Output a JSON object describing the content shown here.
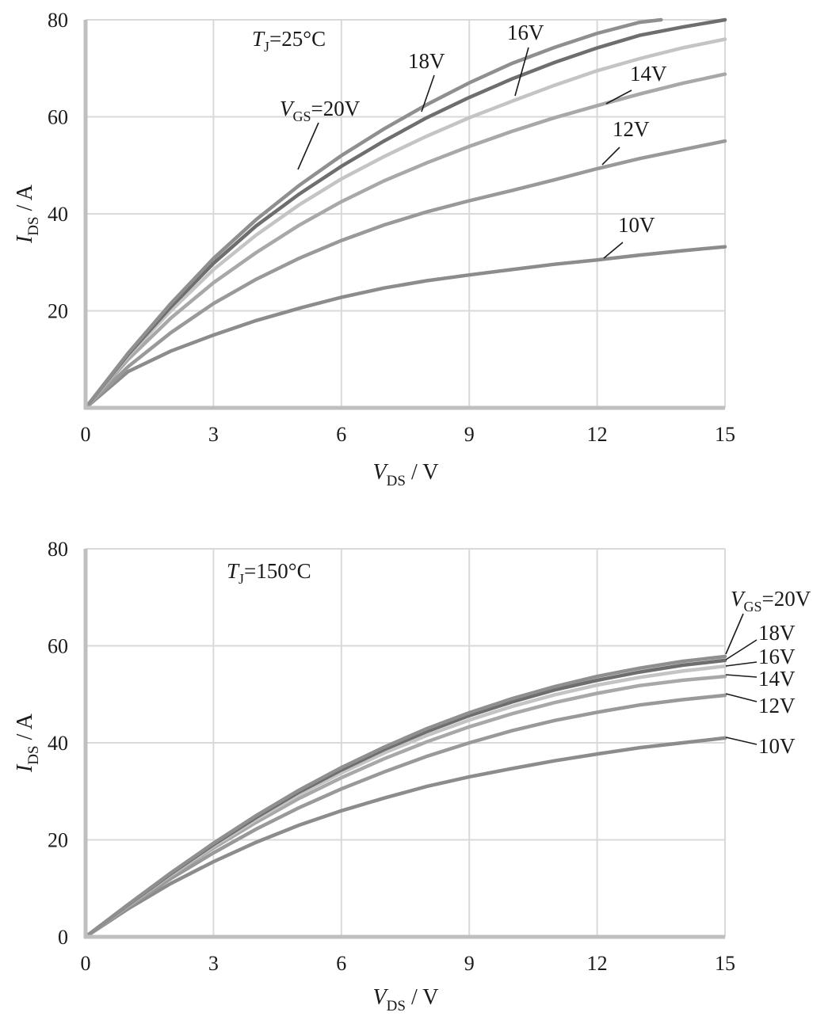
{
  "chart_data": [
    {
      "type": "line",
      "annotation": {
        "symbol": "T",
        "sub": "J",
        "text": "=25°C"
      },
      "xlabel": {
        "symbol": "V",
        "sub": "DS",
        "unit": " / V"
      },
      "ylabel": {
        "symbol": "I",
        "sub": "DS",
        "unit": " / A"
      },
      "xlim": [
        0,
        15
      ],
      "ylim": [
        0,
        80
      ],
      "xticks": [
        "0",
        "3",
        "6",
        "9",
        "12",
        "15"
      ],
      "yticks": [
        "20",
        "40",
        "60",
        "80"
      ],
      "grid": true,
      "series": [
        {
          "label": "10V",
          "color": "#8c8c8c",
          "points": [
            [
              0,
              0
            ],
            [
              1,
              7.5
            ],
            [
              2,
              11.7
            ],
            [
              3,
              15
            ],
            [
              4,
              18
            ],
            [
              5,
              20.5
            ],
            [
              6,
              22.8
            ],
            [
              7,
              24.7
            ],
            [
              8,
              26.2
            ],
            [
              9,
              27.4
            ],
            [
              10,
              28.5
            ],
            [
              11,
              29.6
            ],
            [
              12,
              30.5
            ],
            [
              13,
              31.5
            ],
            [
              14,
              32.4
            ],
            [
              15,
              33.2
            ]
          ]
        },
        {
          "label": "12V",
          "color": "#999999",
          "points": [
            [
              0,
              0
            ],
            [
              1,
              8.5
            ],
            [
              2,
              15.5
            ],
            [
              3,
              21.5
            ],
            [
              4,
              26.5
            ],
            [
              5,
              30.8
            ],
            [
              6,
              34.5
            ],
            [
              7,
              37.7
            ],
            [
              8,
              40.4
            ],
            [
              9,
              42.7
            ],
            [
              10,
              44.8
            ],
            [
              11,
              47
            ],
            [
              12,
              49.3
            ],
            [
              13,
              51.4
            ],
            [
              14,
              53.2
            ],
            [
              15,
              55
            ]
          ]
        },
        {
          "label": "14V",
          "color": "#a8a8a8",
          "points": [
            [
              0,
              0
            ],
            [
              1,
              10
            ],
            [
              2,
              18.5
            ],
            [
              3,
              25.8
            ],
            [
              4,
              32
            ],
            [
              5,
              37.6
            ],
            [
              6,
              42.5
            ],
            [
              7,
              46.8
            ],
            [
              8,
              50.5
            ],
            [
              9,
              53.9
            ],
            [
              10,
              57
            ],
            [
              11,
              59.8
            ],
            [
              12,
              62.3
            ],
            [
              13,
              64.7
            ],
            [
              14,
              66.9
            ],
            [
              15,
              68.8
            ]
          ]
        },
        {
          "label": "16V",
          "color": "#c4c4c4",
          "points": [
            [
              0,
              0
            ],
            [
              1,
              10.7
            ],
            [
              2,
              20
            ],
            [
              3,
              28.5
            ],
            [
              4,
              35.6
            ],
            [
              5,
              41.8
            ],
            [
              6,
              47.2
            ],
            [
              7,
              51.8
            ],
            [
              8,
              56
            ],
            [
              9,
              59.8
            ],
            [
              10,
              63.2
            ],
            [
              11,
              66.5
            ],
            [
              12,
              69.5
            ],
            [
              13,
              72
            ],
            [
              14,
              74.2
            ],
            [
              15,
              76
            ]
          ]
        },
        {
          "label": "18V",
          "color": "#6e6e6e",
          "points": [
            [
              0,
              0
            ],
            [
              1,
              11
            ],
            [
              2,
              20.8
            ],
            [
              3,
              29.8
            ],
            [
              4,
              37.5
            ],
            [
              5,
              44
            ],
            [
              6,
              49.8
            ],
            [
              7,
              55
            ],
            [
              8,
              59.8
            ],
            [
              9,
              64
            ],
            [
              10,
              67.8
            ],
            [
              11,
              71.2
            ],
            [
              12,
              74.2
            ],
            [
              13,
              76.8
            ],
            [
              14,
              78.5
            ],
            [
              15,
              80
            ]
          ]
        },
        {
          "label": "V_GS=20V",
          "color": "#8f8f8f",
          "points": [
            [
              0,
              0
            ],
            [
              1,
              11.3
            ],
            [
              2,
              21.5
            ],
            [
              3,
              30.8
            ],
            [
              4,
              38.8
            ],
            [
              5,
              45.8
            ],
            [
              6,
              52
            ],
            [
              7,
              57.5
            ],
            [
              8,
              62.5
            ],
            [
              9,
              67
            ],
            [
              10,
              71
            ],
            [
              11,
              74.3
            ],
            [
              12,
              77.2
            ],
            [
              13,
              79.5
            ],
            [
              13.5,
              80
            ]
          ]
        }
      ],
      "legend_labels": [
        {
          "key": "vgs20",
          "prefix": "V",
          "sub": "GS",
          "text": "=20V"
        },
        {
          "key": "v18",
          "text": "18V"
        },
        {
          "key": "v16",
          "text": "16V"
        },
        {
          "key": "v14",
          "text": "14V"
        },
        {
          "key": "v12",
          "text": "12V"
        },
        {
          "key": "v10",
          "text": "10V"
        }
      ]
    },
    {
      "type": "line",
      "annotation": {
        "symbol": "T",
        "sub": "J",
        "text": "=150°C"
      },
      "xlabel": {
        "symbol": "V",
        "sub": "DS",
        "unit": " / V"
      },
      "ylabel": {
        "symbol": "I",
        "sub": "DS",
        "unit": " / A"
      },
      "xlim": [
        0,
        15
      ],
      "ylim": [
        0,
        80
      ],
      "xticks": [
        "0",
        "3",
        "6",
        "9",
        "12",
        "15"
      ],
      "yticks": [
        "0",
        "20",
        "40",
        "60",
        "80"
      ],
      "grid": true,
      "series": [
        {
          "label": "10V",
          "color": "#8c8c8c",
          "points": [
            [
              0,
              0
            ],
            [
              1,
              5.8
            ],
            [
              2,
              11
            ],
            [
              3,
              15.5
            ],
            [
              4,
              19.5
            ],
            [
              5,
              23
            ],
            [
              6,
              26
            ],
            [
              7,
              28.6
            ],
            [
              8,
              31
            ],
            [
              9,
              33
            ],
            [
              10,
              34.7
            ],
            [
              11,
              36.3
            ],
            [
              12,
              37.7
            ],
            [
              13,
              39
            ],
            [
              14,
              40
            ],
            [
              15,
              41
            ]
          ]
        },
        {
          "label": "12V",
          "color": "#999999",
          "points": [
            [
              0,
              0
            ],
            [
              1,
              6.2
            ],
            [
              2,
              12
            ],
            [
              3,
              17.3
            ],
            [
              4,
              22.2
            ],
            [
              5,
              26.6
            ],
            [
              6,
              30.5
            ],
            [
              7,
              34
            ],
            [
              8,
              37.2
            ],
            [
              9,
              40
            ],
            [
              10,
              42.5
            ],
            [
              11,
              44.6
            ],
            [
              12,
              46.3
            ],
            [
              13,
              47.8
            ],
            [
              14,
              48.9
            ],
            [
              15,
              49.8
            ]
          ]
        },
        {
          "label": "14V",
          "color": "#a8a8a8",
          "points": [
            [
              0,
              0
            ],
            [
              1,
              6.4
            ],
            [
              2,
              12.6
            ],
            [
              3,
              18.3
            ],
            [
              4,
              23.6
            ],
            [
              5,
              28.5
            ],
            [
              6,
              32.8
            ],
            [
              7,
              36.7
            ],
            [
              8,
              40.2
            ],
            [
              9,
              43.3
            ],
            [
              10,
              46
            ],
            [
              11,
              48.3
            ],
            [
              12,
              50.2
            ],
            [
              13,
              51.8
            ],
            [
              14,
              52.9
            ],
            [
              15,
              53.7
            ]
          ]
        },
        {
          "label": "16V",
          "color": "#c4c4c4",
          "points": [
            [
              0,
              0
            ],
            [
              1,
              6.5
            ],
            [
              2,
              12.8
            ],
            [
              3,
              18.7
            ],
            [
              4,
              24.2
            ],
            [
              5,
              29.3
            ],
            [
              6,
              33.8
            ],
            [
              7,
              37.9
            ],
            [
              8,
              41.5
            ],
            [
              9,
              44.7
            ],
            [
              10,
              47.5
            ],
            [
              11,
              49.9
            ],
            [
              12,
              51.9
            ],
            [
              13,
              53.5
            ],
            [
              14,
              54.8
            ],
            [
              15,
              55.8
            ]
          ]
        },
        {
          "label": "18V",
          "color": "#6e6e6e",
          "points": [
            [
              0,
              0
            ],
            [
              1,
              6.6
            ],
            [
              2,
              13
            ],
            [
              3,
              19
            ],
            [
              4,
              24.6
            ],
            [
              5,
              29.8
            ],
            [
              6,
              34.4
            ],
            [
              7,
              38.6
            ],
            [
              8,
              42.3
            ],
            [
              9,
              45.6
            ],
            [
              10,
              48.4
            ],
            [
              11,
              50.9
            ],
            [
              12,
              52.9
            ],
            [
              13,
              54.6
            ],
            [
              14,
              56
            ],
            [
              15,
              57
            ]
          ]
        },
        {
          "label": "V_GS=20V",
          "color": "#8f8f8f",
          "points": [
            [
              0,
              0
            ],
            [
              1,
              6.7
            ],
            [
              2,
              13.2
            ],
            [
              3,
              19.3
            ],
            [
              4,
              25
            ],
            [
              5,
              30.2
            ],
            [
              6,
              34.9
            ],
            [
              7,
              39.1
            ],
            [
              8,
              42.9
            ],
            [
              9,
              46.2
            ],
            [
              10,
              49.1
            ],
            [
              11,
              51.6
            ],
            [
              12,
              53.7
            ],
            [
              13,
              55.4
            ],
            [
              14,
              56.8
            ],
            [
              15,
              57.8
            ]
          ]
        }
      ],
      "legend_labels": [
        {
          "key": "vgs20",
          "prefix": "V",
          "sub": "GS",
          "text": "=20V"
        },
        {
          "key": "v18",
          "text": "18V"
        },
        {
          "key": "v16",
          "text": "16V"
        },
        {
          "key": "v14",
          "text": "14V"
        },
        {
          "key": "v12",
          "text": "12V"
        },
        {
          "key": "v10",
          "text": "10V"
        }
      ]
    }
  ]
}
